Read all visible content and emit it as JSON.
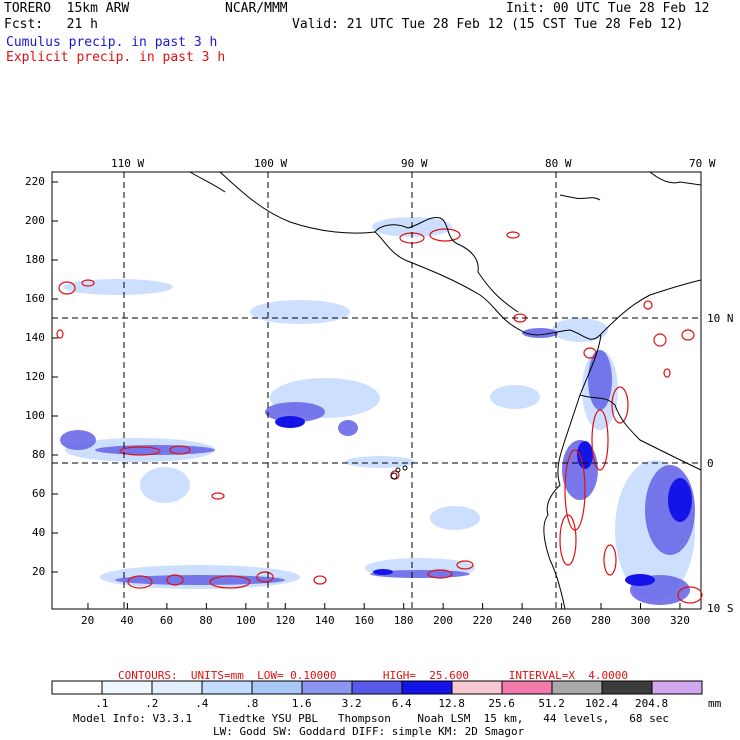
{
  "header": {
    "model": "TORERO  15km ARW",
    "org": "NCAR/MMM",
    "init": "Init: 00 UTC Tue 28 Feb 12",
    "fcst": "Fcst:   21 h",
    "valid": "Valid: 21 UTC Tue 28 Feb 12 (15 CST Tue 28 Feb 12)",
    "cumulus_label": "Cumulus precip. in past 3 h",
    "explicit_label": "Explicit precip. in past 3 h"
  },
  "axes": {
    "lon_labels": [
      "110 W",
      "100 W",
      "90 W",
      "80 W",
      "70 W"
    ],
    "lat_labels": [
      "10 N",
      "0",
      "10 S"
    ],
    "y_ticks": [
      "20",
      "40",
      "60",
      "80",
      "100",
      "120",
      "140",
      "160",
      "180",
      "200",
      "220"
    ],
    "x_ticks": [
      "20",
      "40",
      "60",
      "80",
      "100",
      "120",
      "140",
      "160",
      "180",
      "200",
      "220",
      "240",
      "260",
      "280",
      "300",
      "320"
    ]
  },
  "contours_text": "CONTOURS:  UNITS=mm  LOW= 0.10000       HIGH=  25.600      INTERVAL=X  4.0000",
  "colorbar": {
    "labels": [
      ".1",
      ".2",
      ".4",
      ".8",
      "1.6",
      "3.2",
      "6.4",
      "12.8",
      "25.6",
      "51.2",
      "102.4",
      "204.8"
    ],
    "unit": "mm",
    "colors": [
      "#ffffff",
      "#f0f6ff",
      "#e2efff",
      "#c4dcff",
      "#aac8f5",
      "#8c96ee",
      "#5a5ae8",
      "#1414e8",
      "#f5c8d2",
      "#f07aaa",
      "#aaaaaa",
      "#3c3c3c",
      "#d2a8f0"
    ]
  },
  "footer": {
    "line1": "Model Info: V3.3.1    Tiedtke YSU PBL   Thompson    Noah LSM  15 km,   44 levels,   68 sec",
    "line2": "LW: Godd SW: Goddard DIFF: simple KM: 2D Smagor"
  },
  "styles": {
    "cumulus_color": "#1a1acc",
    "explicit_color": "#e01010"
  }
}
